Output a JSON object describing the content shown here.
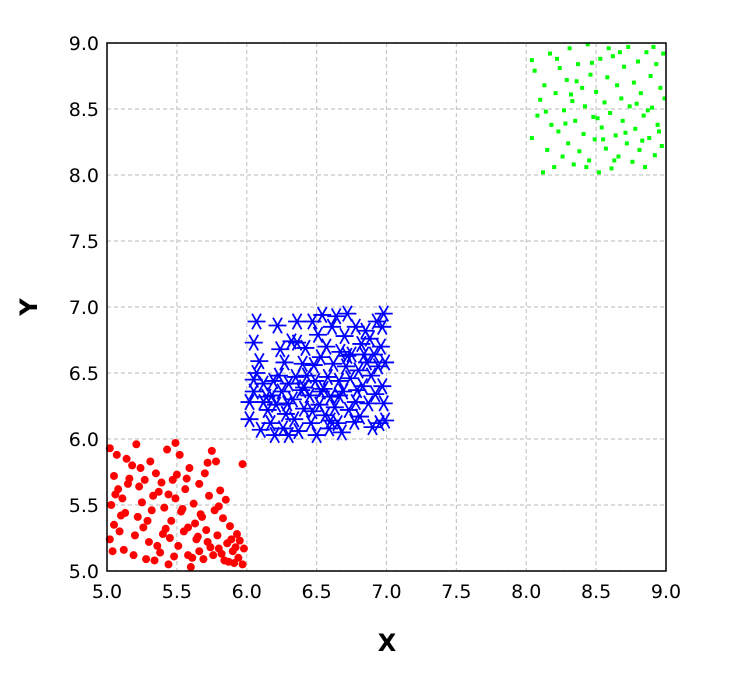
{
  "chart_data": {
    "type": "scatter",
    "title": "",
    "xlabel": "X",
    "ylabel": "Y",
    "xlim": [
      5.0,
      9.0
    ],
    "ylim": [
      5.0,
      9.0
    ],
    "xticks": [
      "5.0",
      "5.5",
      "6.0",
      "6.5",
      "7.0",
      "7.5",
      "8.0",
      "8.5",
      "9.0"
    ],
    "yticks": [
      "5.0",
      "5.5",
      "6.0",
      "6.5",
      "7.0",
      "7.5",
      "8.0",
      "8.5",
      "9.0"
    ],
    "grid": true,
    "legend": "none",
    "series": [
      {
        "marker": "dot",
        "color": "#ff0000",
        "points": [
          [
            5.02,
            5.93
          ],
          [
            5.05,
            5.72
          ],
          [
            5.03,
            5.5
          ],
          [
            5.05,
            5.35
          ],
          [
            5.02,
            5.24
          ],
          [
            5.08,
            5.62
          ],
          [
            5.1,
            5.42
          ],
          [
            5.12,
            5.16
          ],
          [
            5.14,
            5.85
          ],
          [
            5.18,
            5.8
          ],
          [
            5.21,
            5.96
          ],
          [
            5.23,
            5.64
          ],
          [
            5.25,
            5.52
          ],
          [
            5.26,
            5.33
          ],
          [
            5.28,
            5.09
          ],
          [
            5.3,
            5.22
          ],
          [
            5.31,
            5.83
          ],
          [
            5.32,
            5.46
          ],
          [
            5.35,
            5.74
          ],
          [
            5.37,
            5.6
          ],
          [
            5.38,
            5.14
          ],
          [
            5.4,
            5.28
          ],
          [
            5.41,
            5.48
          ],
          [
            5.43,
            5.92
          ],
          [
            5.44,
            5.05
          ],
          [
            5.46,
            5.38
          ],
          [
            5.47,
            5.69
          ],
          [
            5.49,
            5.55
          ],
          [
            5.49,
            5.97
          ],
          [
            5.51,
            5.19
          ],
          [
            5.52,
            5.88
          ],
          [
            5.53,
            5.45
          ],
          [
            5.55,
            5.3
          ],
          [
            5.56,
            5.62
          ],
          [
            5.58,
            5.12
          ],
          [
            5.59,
            5.78
          ],
          [
            5.6,
            5.03
          ],
          [
            5.62,
            5.51
          ],
          [
            5.63,
            5.36
          ],
          [
            5.64,
            5.24
          ],
          [
            5.66,
            5.66
          ],
          [
            5.67,
            5.43
          ],
          [
            5.69,
            5.09
          ],
          [
            5.7,
            5.74
          ],
          [
            5.71,
            5.31
          ],
          [
            5.73,
            5.57
          ],
          [
            5.74,
            5.18
          ],
          [
            5.75,
            5.91
          ],
          [
            5.77,
            5.46
          ],
          [
            5.78,
            5.83
          ],
          [
            5.79,
            5.27
          ],
          [
            5.81,
            5.61
          ],
          [
            5.82,
            5.13
          ],
          [
            5.83,
            5.4
          ],
          [
            5.85,
            5.54
          ],
          [
            5.86,
            5.21
          ],
          [
            5.87,
            5.07
          ],
          [
            5.88,
            5.34
          ],
          [
            5.9,
            5.15
          ],
          [
            5.91,
            5.06
          ],
          [
            5.93,
            5.28
          ],
          [
            5.94,
            5.1
          ],
          [
            5.95,
            5.23
          ],
          [
            5.97,
            5.81
          ],
          [
            5.97,
            5.05
          ],
          [
            5.98,
            5.17
          ],
          [
            5.06,
            5.58
          ],
          [
            5.09,
            5.3
          ],
          [
            5.13,
            5.44
          ],
          [
            5.16,
            5.7
          ],
          [
            5.2,
            5.27
          ],
          [
            5.24,
            5.78
          ],
          [
            5.29,
            5.38
          ],
          [
            5.33,
            5.57
          ],
          [
            5.36,
            5.19
          ],
          [
            5.39,
            5.67
          ],
          [
            5.42,
            5.32
          ],
          [
            5.45,
            5.25
          ],
          [
            5.48,
            5.11
          ],
          [
            5.54,
            5.47
          ],
          [
            5.57,
            5.7
          ],
          [
            5.61,
            5.1
          ],
          [
            5.65,
            5.26
          ],
          [
            5.68,
            5.41
          ],
          [
            5.72,
            5.22
          ],
          [
            5.76,
            5.12
          ],
          [
            5.8,
            5.17
          ],
          [
            5.84,
            5.08
          ],
          [
            5.89,
            5.24
          ],
          [
            5.92,
            5.18
          ],
          [
            5.04,
            5.15
          ],
          [
            5.07,
            5.88
          ],
          [
            5.11,
            5.55
          ],
          [
            5.15,
            5.66
          ],
          [
            5.19,
            5.12
          ],
          [
            5.22,
            5.41
          ],
          [
            5.27,
            5.69
          ],
          [
            5.34,
            5.08
          ],
          [
            5.44,
            5.58
          ],
          [
            5.5,
            5.73
          ],
          [
            5.58,
            5.33
          ],
          [
            5.66,
            5.15
          ],
          [
            5.72,
            5.82
          ],
          [
            5.8,
            5.49
          ]
        ]
      },
      {
        "marker": "asterisk",
        "color": "#0000ff",
        "points": [
          [
            6.07,
            6.5
          ],
          [
            6.07,
            6.89
          ],
          [
            6.05,
            6.73
          ],
          [
            6.05,
            6.45
          ],
          [
            6.05,
            6.36
          ],
          [
            6.02,
            6.28
          ],
          [
            6.02,
            6.15
          ],
          [
            6.1,
            6.07
          ],
          [
            6.12,
            6.42
          ],
          [
            6.14,
            6.32
          ],
          [
            6.15,
            6.22
          ],
          [
            6.17,
            6.12
          ],
          [
            6.19,
            6.44
          ],
          [
            6.2,
            6.03
          ],
          [
            6.21,
            6.26
          ],
          [
            6.22,
            6.86
          ],
          [
            6.23,
            6.48
          ],
          [
            6.25,
            6.36
          ],
          [
            6.26,
            6.08
          ],
          [
            6.27,
            6.58
          ],
          [
            6.28,
            6.19
          ],
          [
            6.3,
            6.42
          ],
          [
            6.3,
            6.03
          ],
          [
            6.32,
            6.74
          ],
          [
            6.33,
            6.3
          ],
          [
            6.34,
            6.15
          ],
          [
            6.35,
            6.47
          ],
          [
            6.36,
            6.89
          ],
          [
            6.37,
            6.06
          ],
          [
            6.39,
            6.37
          ],
          [
            6.4,
            6.57
          ],
          [
            6.41,
            6.23
          ],
          [
            6.42,
            6.69
          ],
          [
            6.43,
            6.48
          ],
          [
            6.45,
            6.33
          ],
          [
            6.46,
            6.12
          ],
          [
            6.47,
            6.89
          ],
          [
            6.48,
            6.56
          ],
          [
            6.49,
            6.44
          ],
          [
            6.5,
            6.03
          ],
          [
            6.51,
            6.79
          ],
          [
            6.52,
            6.26
          ],
          [
            6.53,
            6.62
          ],
          [
            6.54,
            6.94
          ],
          [
            6.55,
            6.38
          ],
          [
            6.56,
            6.18
          ],
          [
            6.57,
            6.7
          ],
          [
            6.58,
            6.47
          ],
          [
            6.59,
            6.08
          ],
          [
            6.6,
            6.32
          ],
          [
            6.61,
            6.85
          ],
          [
            6.62,
            6.57
          ],
          [
            6.63,
            6.24
          ],
          [
            6.64,
            6.93
          ],
          [
            6.65,
            6.12
          ],
          [
            6.66,
            6.44
          ],
          [
            6.67,
            6.66
          ],
          [
            6.68,
            6.05
          ],
          [
            6.69,
            6.36
          ],
          [
            6.7,
            6.78
          ],
          [
            6.71,
            6.55
          ],
          [
            6.72,
            6.95
          ],
          [
            6.73,
            6.22
          ],
          [
            6.74,
            6.46
          ],
          [
            6.75,
            6.64
          ],
          [
            6.77,
            6.13
          ],
          [
            6.78,
            6.85
          ],
          [
            6.79,
            6.37
          ],
          [
            6.8,
            6.52
          ],
          [
            6.81,
            6.17
          ],
          [
            6.82,
            6.72
          ],
          [
            6.83,
            6.4
          ],
          [
            6.85,
            6.82
          ],
          [
            6.86,
            6.58
          ],
          [
            6.87,
            6.27
          ],
          [
            6.88,
            6.76
          ],
          [
            6.89,
            6.48
          ],
          [
            6.9,
            6.09
          ],
          [
            6.91,
            6.64
          ],
          [
            6.92,
            6.34
          ],
          [
            6.93,
            6.89
          ],
          [
            6.94,
            6.55
          ],
          [
            6.95,
            6.12
          ],
          [
            6.96,
            6.7
          ],
          [
            6.97,
            6.4
          ],
          [
            6.98,
            6.95
          ],
          [
            6.98,
            6.27
          ],
          [
            6.99,
            6.58
          ],
          [
            6.99,
            6.14
          ],
          [
            6.97,
            6.85
          ],
          [
            6.09,
            6.59
          ],
          [
            6.12,
            6.28
          ],
          [
            6.18,
            6.33
          ],
          [
            6.24,
            6.68
          ],
          [
            6.29,
            6.27
          ],
          [
            6.36,
            6.73
          ],
          [
            6.41,
            6.39
          ],
          [
            6.47,
            6.21
          ],
          [
            6.53,
            6.36
          ],
          [
            6.6,
            6.14
          ],
          [
            6.66,
            6.33
          ],
          [
            6.72,
            6.63
          ],
          [
            6.78,
            6.28
          ],
          [
            6.84,
            6.64
          ]
        ]
      },
      {
        "marker": "dot-small",
        "color": "#00ff00",
        "points": [
          [
            8.04,
            8.28
          ],
          [
            8.04,
            8.87
          ],
          [
            8.06,
            8.79
          ],
          [
            8.08,
            8.45
          ],
          [
            8.1,
            8.57
          ],
          [
            8.12,
            8.02
          ],
          [
            8.13,
            8.68
          ],
          [
            8.15,
            8.19
          ],
          [
            8.17,
            8.92
          ],
          [
            8.18,
            8.38
          ],
          [
            8.2,
            8.06
          ],
          [
            8.21,
            8.62
          ],
          [
            8.23,
            8.33
          ],
          [
            8.24,
            8.81
          ],
          [
            8.26,
            8.14
          ],
          [
            8.27,
            8.49
          ],
          [
            8.29,
            8.72
          ],
          [
            8.3,
            8.24
          ],
          [
            8.31,
            8.96
          ],
          [
            8.33,
            8.56
          ],
          [
            8.34,
            8.08
          ],
          [
            8.35,
            8.41
          ],
          [
            8.37,
            8.84
          ],
          [
            8.38,
            8.18
          ],
          [
            8.4,
            8.66
          ],
          [
            8.41,
            8.31
          ],
          [
            8.42,
            8.52
          ],
          [
            8.44,
            8.99
          ],
          [
            8.45,
            8.11
          ],
          [
            8.46,
            8.76
          ],
          [
            8.48,
            8.44
          ],
          [
            8.49,
            8.27
          ],
          [
            8.5,
            8.63
          ],
          [
            8.52,
            8.02
          ],
          [
            8.53,
            8.88
          ],
          [
            8.54,
            8.36
          ],
          [
            8.56,
            8.55
          ],
          [
            8.57,
            8.2
          ],
          [
            8.58,
            8.74
          ],
          [
            8.6,
            8.47
          ],
          [
            8.61,
            8.05
          ],
          [
            8.62,
            8.9
          ],
          [
            8.64,
            8.3
          ],
          [
            8.65,
            8.68
          ],
          [
            8.66,
            8.14
          ],
          [
            8.68,
            8.58
          ],
          [
            8.69,
            8.41
          ],
          [
            8.7,
            8.82
          ],
          [
            8.72,
            8.24
          ],
          [
            8.73,
            8.97
          ],
          [
            8.74,
            8.52
          ],
          [
            8.76,
            8.1
          ],
          [
            8.77,
            8.7
          ],
          [
            8.78,
            8.35
          ],
          [
            8.8,
            8.86
          ],
          [
            8.81,
            8.19
          ],
          [
            8.82,
            8.62
          ],
          [
            8.84,
            8.45
          ],
          [
            8.85,
            8.06
          ],
          [
            8.86,
            8.93
          ],
          [
            8.88,
            8.28
          ],
          [
            8.89,
            8.75
          ],
          [
            8.9,
            8.51
          ],
          [
            8.92,
            8.15
          ],
          [
            8.93,
            8.84
          ],
          [
            8.94,
            8.38
          ],
          [
            8.96,
            8.66
          ],
          [
            8.97,
            8.22
          ],
          [
            8.98,
            8.92
          ],
          [
            8.99,
            8.58
          ],
          [
            8.14,
            8.48
          ],
          [
            8.22,
            8.88
          ],
          [
            8.28,
            8.39
          ],
          [
            8.36,
            8.71
          ],
          [
            8.43,
            8.06
          ],
          [
            8.51,
            8.43
          ],
          [
            8.59,
            8.96
          ],
          [
            8.63,
            8.11
          ],
          [
            8.71,
            8.32
          ],
          [
            8.79,
            8.54
          ],
          [
            8.87,
            8.49
          ],
          [
            8.95,
            8.33
          ],
          [
            8.32,
            8.61
          ],
          [
            8.47,
            8.85
          ],
          [
            8.55,
            8.27
          ],
          [
            8.67,
            8.93
          ],
          [
            8.83,
            8.26
          ],
          [
            8.91,
            8.97
          ]
        ]
      }
    ]
  }
}
